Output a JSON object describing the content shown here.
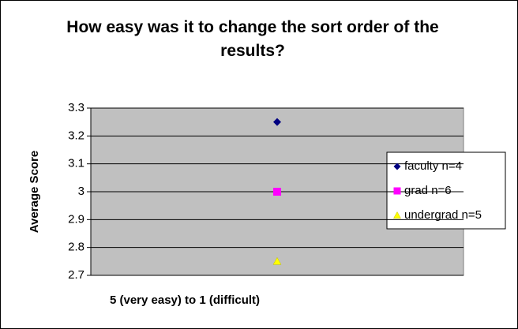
{
  "chart_data": {
    "type": "scatter",
    "title": "How easy was it to change the sort order of the results?",
    "xlabel": "5 (very easy) to 1 (difficult)",
    "ylabel": "Average Score",
    "categories": [
      null
    ],
    "series": [
      {
        "name": "faculty n=4",
        "color": "#000080",
        "marker": "diamond",
        "values": [
          3.25
        ]
      },
      {
        "name": "grad n=6",
        "color": "#ff00ff",
        "marker": "square",
        "values": [
          3.0
        ]
      },
      {
        "name": "undergrad n=5",
        "color": "#ffff00",
        "marker": "triangle",
        "values": [
          2.75
        ]
      }
    ],
    "ylim": [
      2.7,
      3.3
    ],
    "yticks": [
      2.7,
      2.8,
      2.9,
      3,
      3.1,
      3.2,
      3.3
    ],
    "grid": true,
    "legend": "right"
  }
}
